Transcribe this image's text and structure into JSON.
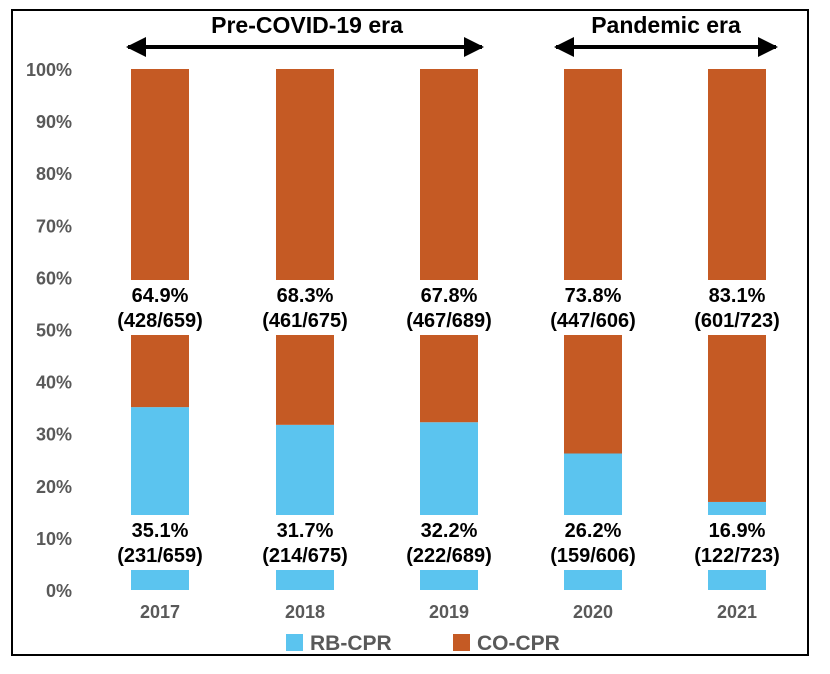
{
  "colors": {
    "rb": "#5bc4ef",
    "co": "#c55a24",
    "frame": "#000000",
    "label_bg": "#ffffff",
    "text": "#000000",
    "axis_text": "#595959"
  },
  "eras": [
    {
      "label": "Pre-COVID-19 era",
      "from": "2017",
      "to": "2019"
    },
    {
      "label": "Pandemic era",
      "from": "2020",
      "to": "2021"
    }
  ],
  "chart_data": {
    "type": "bar",
    "stacked": true,
    "percent": true,
    "categories": [
      "2017",
      "2018",
      "2019",
      "2020",
      "2021"
    ],
    "ylim": [
      0,
      100
    ],
    "yticks": [
      "0%",
      "10%",
      "20%",
      "30%",
      "40%",
      "50%",
      "60%",
      "70%",
      "80%",
      "90%",
      "100%"
    ],
    "grid": false,
    "legend": "bottom",
    "series": [
      {
        "name": "RB-CPR",
        "values": [
          35.1,
          31.7,
          32.2,
          26.2,
          16.9
        ],
        "labels": [
          {
            "pct": "35.1%",
            "frac": "(231/659)"
          },
          {
            "pct": "31.7%",
            "frac": "(214/675)"
          },
          {
            "pct": "32.2%",
            "frac": "(222/689)"
          },
          {
            "pct": "26.2%",
            "frac": "(159/606)"
          },
          {
            "pct": "16.9%",
            "frac": "(122/723)"
          }
        ]
      },
      {
        "name": "CO-CPR",
        "values": [
          64.9,
          68.3,
          67.8,
          73.8,
          83.1
        ],
        "labels": [
          {
            "pct": "64.9%",
            "frac": "(428/659)"
          },
          {
            "pct": "68.3%",
            "frac": "(461/675)"
          },
          {
            "pct": "67.8%",
            "frac": "(467/689)"
          },
          {
            "pct": "73.8%",
            "frac": "(447/606)"
          },
          {
            "pct": "83.1%",
            "frac": "(601/723)"
          }
        ]
      }
    ]
  }
}
